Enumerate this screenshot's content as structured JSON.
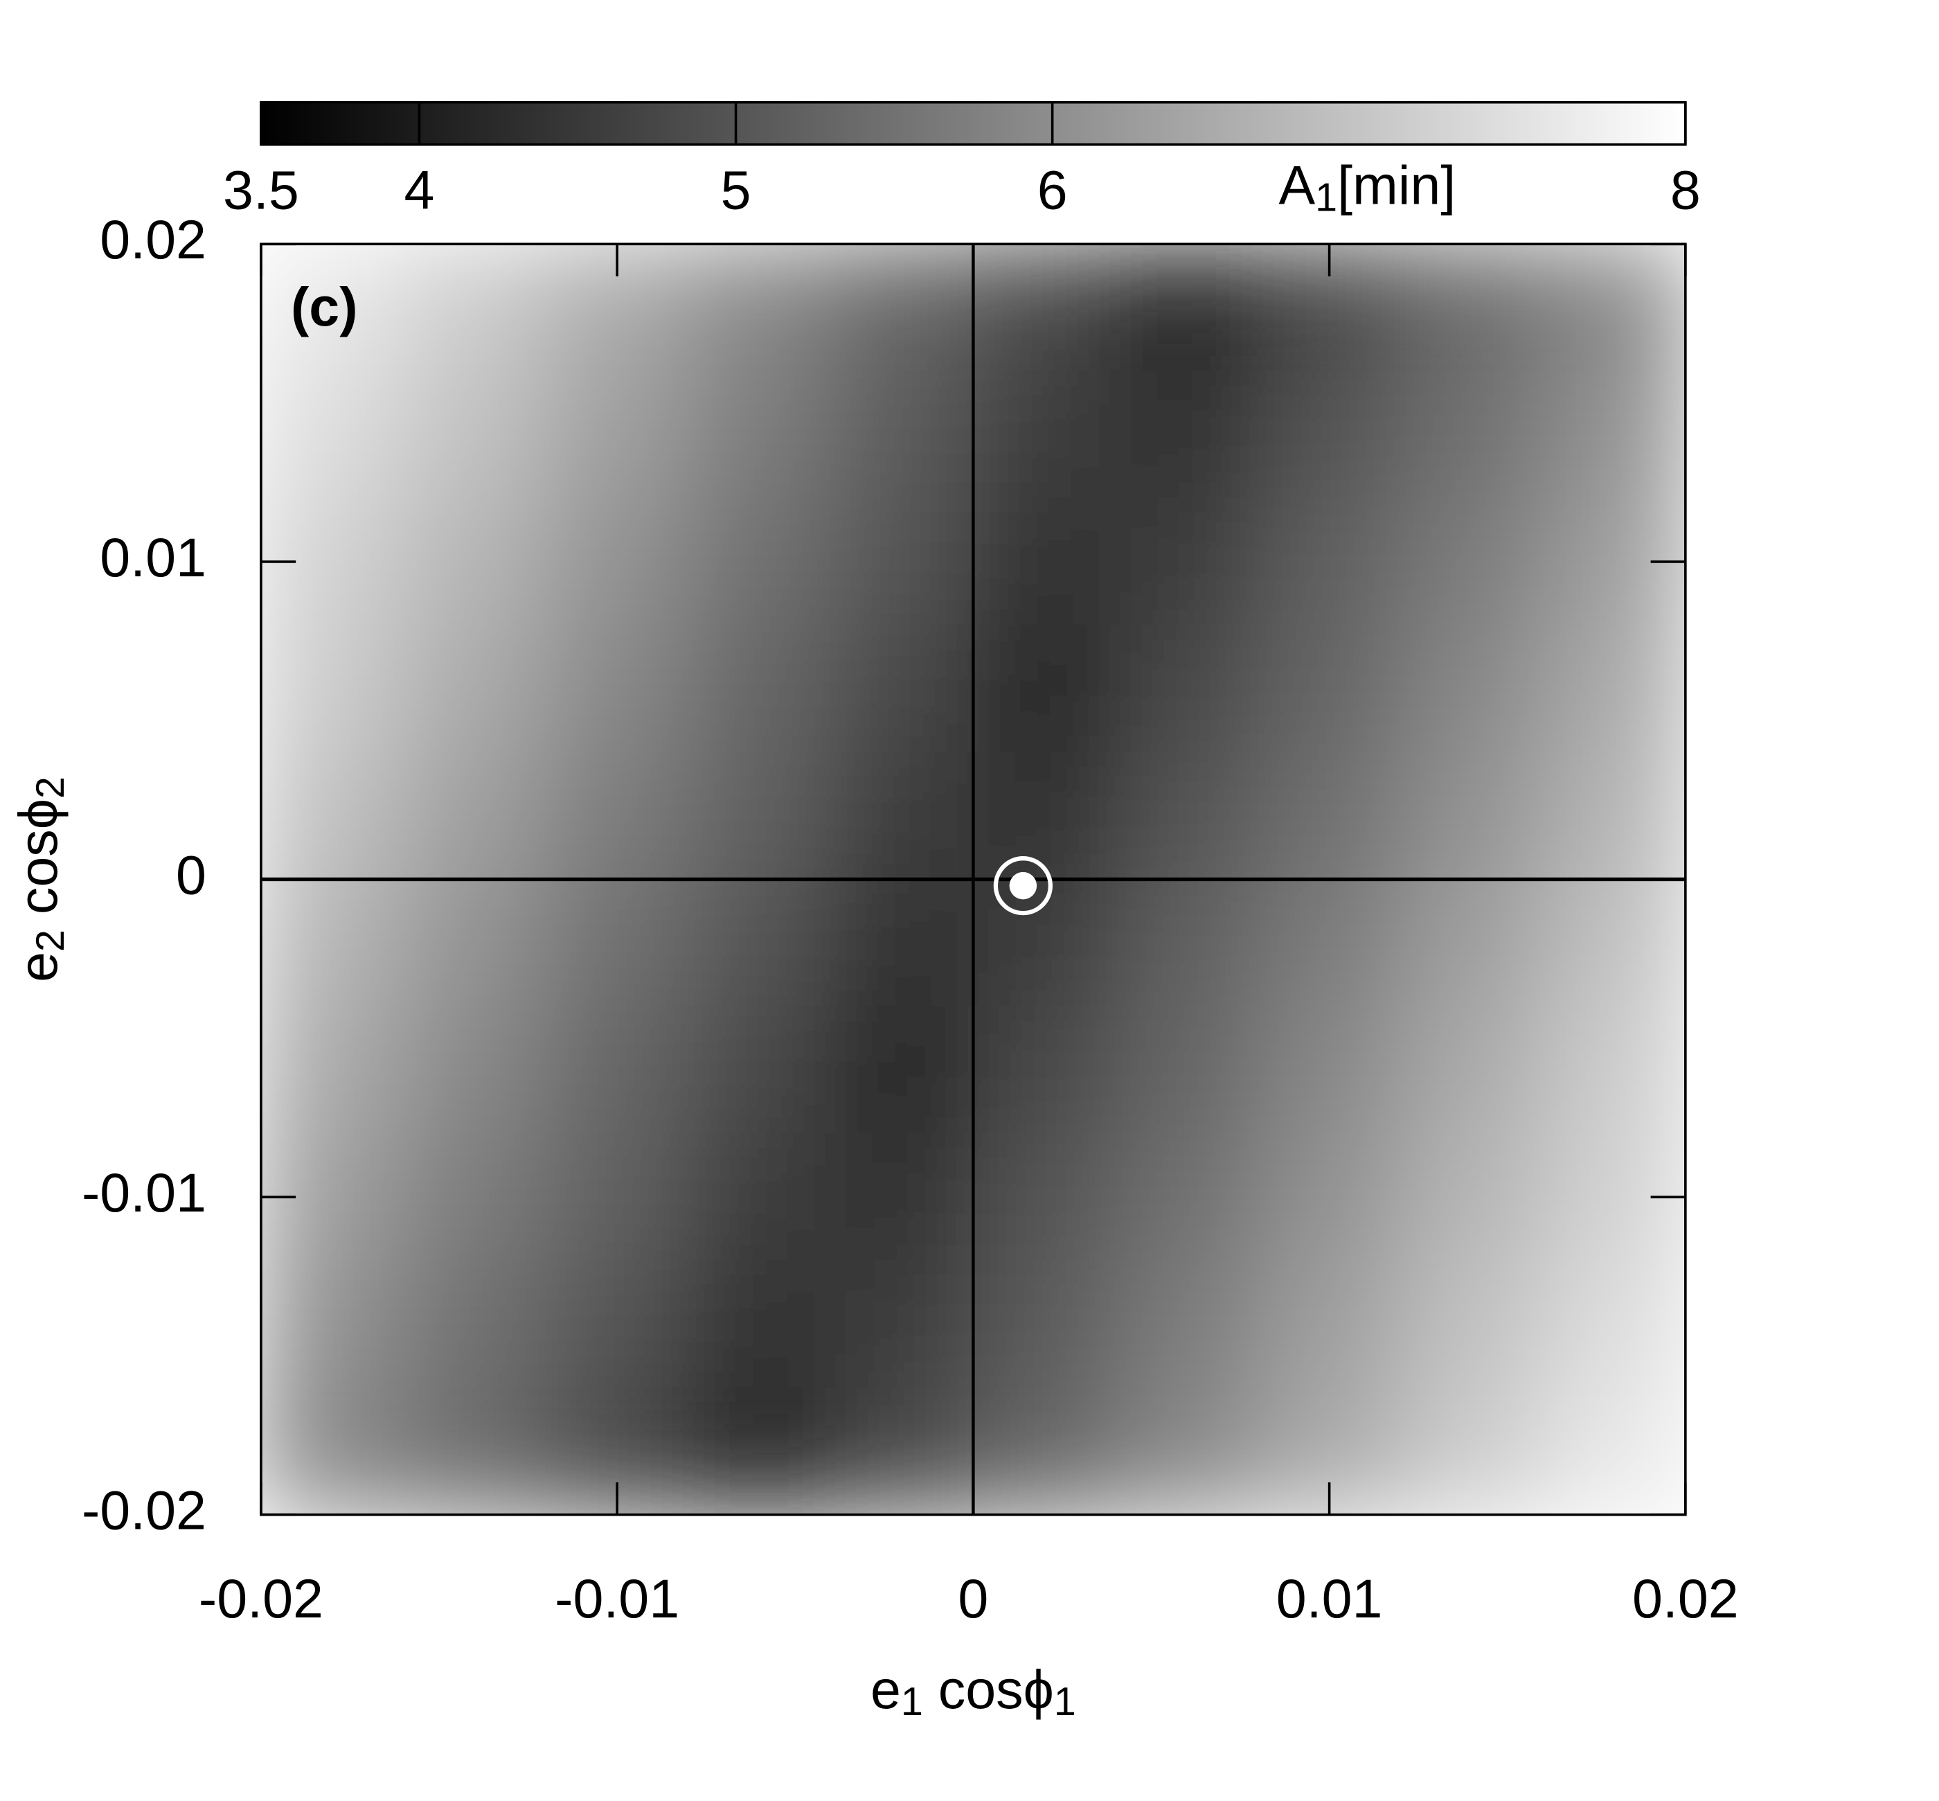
{
  "chart_data": {
    "type": "heatmap",
    "panel_label": "(c)",
    "xlabel": [
      "e",
      "1",
      " cosϕ",
      "1"
    ],
    "ylabel": [
      "e",
      "2",
      " cosϕ",
      "2"
    ],
    "colorbar_label": [
      "A",
      "1",
      "[min]"
    ],
    "xlim": [
      -0.02,
      0.02
    ],
    "ylim": [
      -0.02,
      0.02
    ],
    "xticks": [
      -0.02,
      -0.01,
      0,
      0.01,
      0.02
    ],
    "yticks": [
      -0.02,
      -0.01,
      0,
      0.01,
      0.02
    ],
    "cblim": [
      3.5,
      8
    ],
    "cbticks": [
      3.5,
      4,
      5,
      6,
      8
    ],
    "x": [
      -0.018,
      -0.014,
      -0.01,
      -0.006,
      -0.002,
      0.002,
      0.006,
      0.01,
      0.014,
      0.018
    ],
    "y": [
      0.018,
      0.014,
      0.01,
      0.006,
      0.002,
      -0.002,
      -0.006,
      -0.01,
      -0.014,
      -0.018
    ],
    "z": [
      [
        7.6,
        7.1,
        6.5,
        5.9,
        5.3,
        4.8,
        4.2,
        4.8,
        5.4,
        5.9
      ],
      [
        7.4,
        6.9,
        6.3,
        5.7,
        5.1,
        4.6,
        4.4,
        5.0,
        5.5,
        6.1
      ],
      [
        7.2,
        6.7,
        6.1,
        5.5,
        5.0,
        4.4,
        4.6,
        5.2,
        5.7,
        6.3
      ],
      [
        7.1,
        6.5,
        5.9,
        5.3,
        4.8,
        4.2,
        4.8,
        5.3,
        5.9,
        6.5
      ],
      [
        6.9,
        6.3,
        5.7,
        5.2,
        4.6,
        4.4,
        5.0,
        5.5,
        6.1,
        6.7
      ],
      [
        6.7,
        6.1,
        5.5,
        5.0,
        4.4,
        4.6,
        5.2,
        5.7,
        6.3,
        6.9
      ],
      [
        6.5,
        5.9,
        5.3,
        4.8,
        4.2,
        4.8,
        5.3,
        5.9,
        6.5,
        7.1
      ],
      [
        6.3,
        5.7,
        5.2,
        4.6,
        4.4,
        5.0,
        5.5,
        6.1,
        6.7,
        7.2
      ],
      [
        6.1,
        5.5,
        5.0,
        4.4,
        4.6,
        5.1,
        5.7,
        6.3,
        6.9,
        7.4
      ],
      [
        5.9,
        5.4,
        4.8,
        4.2,
        4.8,
        5.3,
        5.9,
        6.5,
        7.1,
        7.6
      ]
    ],
    "marker": {
      "x": 0.0014,
      "y": -0.0002
    }
  }
}
